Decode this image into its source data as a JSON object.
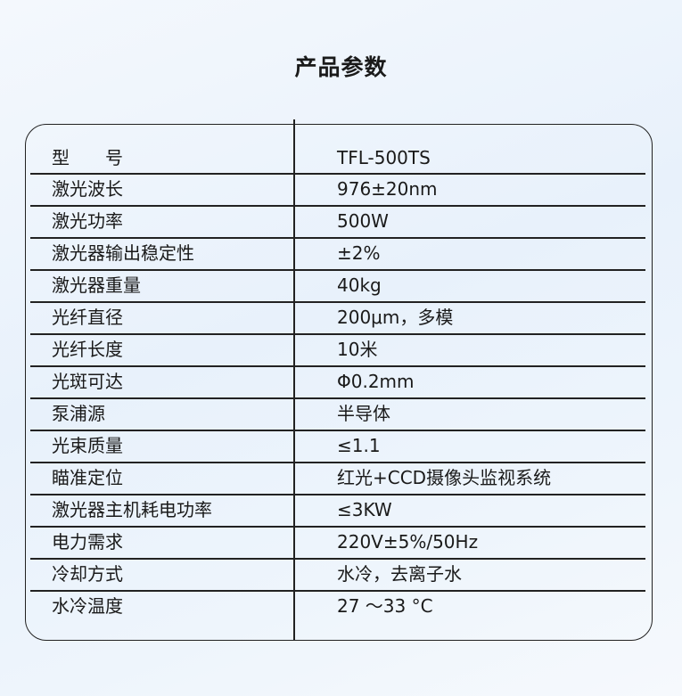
{
  "title": "产品参数",
  "rows": [
    {
      "label": "型　　号",
      "value": "TFL-500TS"
    },
    {
      "label": "激光波长",
      "value": "976±20nm"
    },
    {
      "label": "激光功率",
      "value": "500W"
    },
    {
      "label": "激光器输出稳定性",
      "value": "±2%"
    },
    {
      "label": "激光器重量",
      "value": "40kg"
    },
    {
      "label": "光纤直径",
      "value": "200μm，多模"
    },
    {
      "label": "光纤长度",
      "value": "10米"
    },
    {
      "label": "光斑可达",
      "value": "Φ0.2mm"
    },
    {
      "label": "泵浦源",
      "value": "半导体"
    },
    {
      "label": "光束质量",
      "value": "≤1.1"
    },
    {
      "label": "瞄准定位",
      "value": "红光+CCD摄像头监视系统"
    },
    {
      "label": "激光器主机耗电功率",
      "value": "≤3KW"
    },
    {
      "label": "电力需求",
      "value": "220V±5%/50Hz"
    },
    {
      "label": "冷却方式",
      "value": "水冷，去离子水"
    },
    {
      "label": "水冷温度",
      "value": "27 ～33 °C"
    }
  ]
}
